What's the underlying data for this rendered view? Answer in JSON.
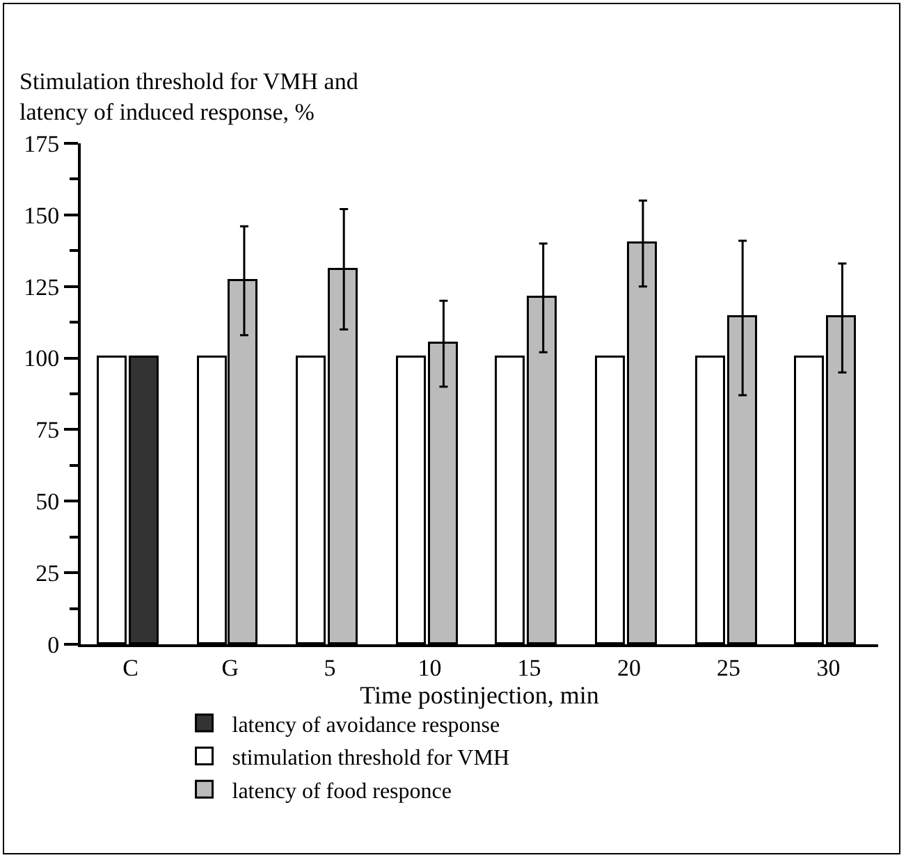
{
  "chart_data": {
    "type": "bar",
    "ylabel": "Stimulation threshold for VMH and\nlatency of induced response, %",
    "xlabel": "Time postinjection, min",
    "categories": [
      "C",
      "G",
      "5",
      "10",
      "15",
      "20",
      "25",
      "30"
    ],
    "series": [
      {
        "name": "latency of avoidance response",
        "color": "#333333",
        "values": [
          100,
          null,
          null,
          null,
          null,
          null,
          null,
          null
        ]
      },
      {
        "name": "stimulation threshold for VMH",
        "color": "#ffffff",
        "values": [
          100,
          100,
          100,
          100,
          100,
          100,
          100,
          100
        ]
      },
      {
        "name": "latency of food responce",
        "color": "#bbbbbb",
        "values": [
          null,
          127,
          131,
          105,
          121,
          140,
          114,
          114
        ],
        "errors": [
          null,
          19,
          21,
          15,
          19,
          15,
          27,
          19
        ]
      }
    ],
    "ylim": [
      0,
      175
    ],
    "yticks": [
      0,
      25,
      50,
      75,
      100,
      125,
      150,
      175
    ],
    "grid": false,
    "legend": "bottom"
  }
}
